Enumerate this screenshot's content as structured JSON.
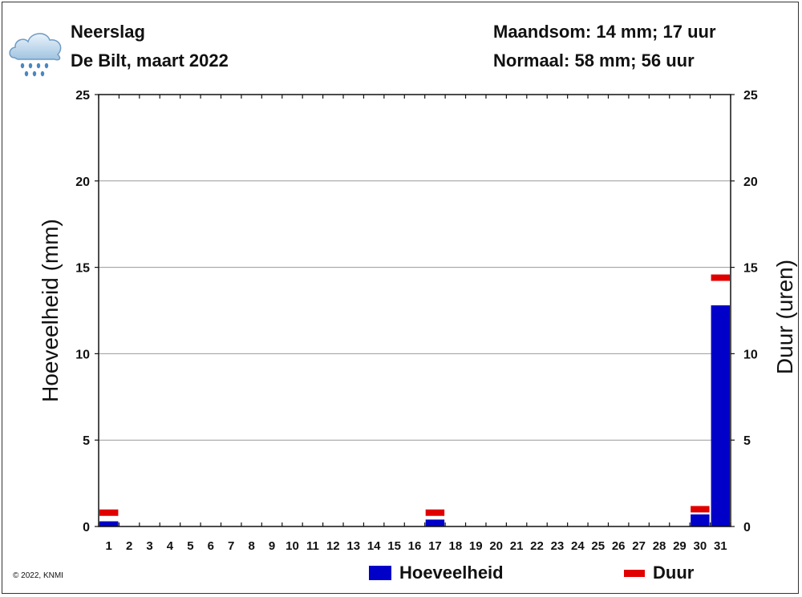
{
  "header": {
    "title": "Neerslag",
    "subtitle": "De Bilt, maart 2022",
    "month_total": "Maandsom: 14 mm; 17 uur",
    "normal": "Normaal: 58 mm; 56 uur",
    "icon": "rain-cloud-icon"
  },
  "footer": {
    "copyright": "© 2022, KNMI"
  },
  "colors": {
    "amount": "#0000c8",
    "duration": "#e00000",
    "grid": "#999999"
  },
  "chart_data": {
    "type": "bar",
    "title": "Neerslag",
    "subtitle": "De Bilt, maart 2022",
    "ylabel": "Hoeveelheid (mm)",
    "y2label": "Duur (uren)",
    "ylim": [
      0,
      25
    ],
    "y2lim": [
      0,
      25
    ],
    "yticks": [
      0,
      5,
      10,
      15,
      20,
      25
    ],
    "grid": true,
    "legend_position": "bottom",
    "categories": [
      "1",
      "2",
      "3",
      "4",
      "5",
      "6",
      "7",
      "8",
      "9",
      "10",
      "11",
      "12",
      "13",
      "14",
      "15",
      "16",
      "17",
      "18",
      "19",
      "20",
      "21",
      "22",
      "23",
      "24",
      "25",
      "26",
      "27",
      "28",
      "29",
      "30",
      "31"
    ],
    "series": [
      {
        "name": "Hoeveelheid",
        "kind": "bar",
        "axis": "left",
        "values": [
          0.3,
          0,
          0,
          0,
          0,
          0,
          0,
          0,
          0,
          0,
          0,
          0,
          0,
          0,
          0,
          0,
          0.4,
          0,
          0,
          0,
          0,
          0,
          0,
          0,
          0,
          0,
          0,
          0,
          0,
          0.7,
          12.8
        ]
      },
      {
        "name": "Duur",
        "kind": "marker",
        "axis": "right",
        "values": [
          0.8,
          0,
          0,
          0,
          0,
          0,
          0,
          0,
          0,
          0,
          0,
          0,
          0,
          0,
          0,
          0,
          0.8,
          0,
          0,
          0,
          0,
          0,
          0,
          0,
          0,
          0,
          0,
          0,
          0,
          1.0,
          14.4
        ]
      }
    ]
  }
}
